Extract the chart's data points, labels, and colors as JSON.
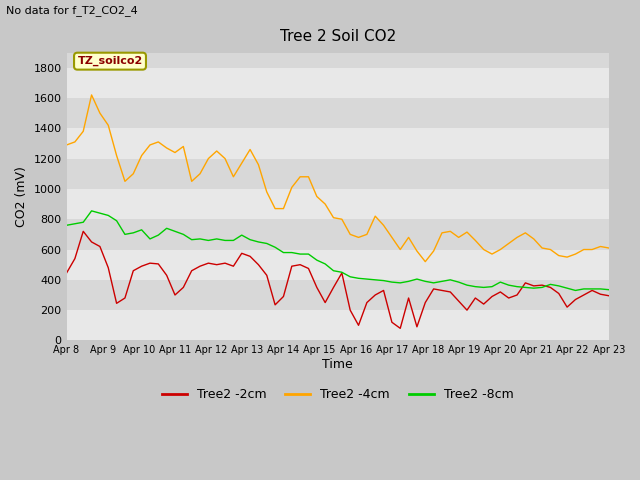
{
  "title": "Tree 2 Soil CO2",
  "subtitle": "No data for f_T2_CO2_4",
  "ylabel": "CO2 (mV)",
  "xlabel": "Time",
  "annotation": "TZ_soilco2",
  "ylim": [
    0,
    1900
  ],
  "yticks": [
    0,
    200,
    400,
    600,
    800,
    1000,
    1200,
    1400,
    1600,
    1800
  ],
  "xtick_labels": [
    "Apr 8",
    "Apr 9",
    "Apr 10",
    "Apr 11",
    "Apr 12",
    "Apr 13",
    "Apr 14",
    "Apr 15",
    "Apr 16",
    "Apr 17",
    "Apr 18",
    "Apr 19",
    "Apr 20",
    "Apr 21",
    "Apr 22",
    "Apr 23"
  ],
  "fig_bg_color": "#c8c8c8",
  "plot_bg_color": "#d8d8d8",
  "band_color": "#e8e8e8",
  "line_colors": {
    "2cm": "#cc0000",
    "4cm": "#ffa500",
    "8cm": "#00cc00"
  },
  "legend_labels": [
    "Tree2 -2cm",
    "Tree2 -4cm",
    "Tree2 -8cm"
  ],
  "series_2cm": [
    445,
    540,
    720,
    650,
    620,
    480,
    245,
    280,
    460,
    490,
    510,
    505,
    430,
    300,
    350,
    460,
    490,
    510,
    500,
    510,
    490,
    575,
    555,
    500,
    430,
    235,
    290,
    490,
    500,
    475,
    350,
    250,
    350,
    445,
    200,
    100,
    250,
    300,
    330,
    120,
    80,
    280,
    90,
    250,
    340,
    330,
    320,
    260,
    200,
    280,
    240,
    290,
    320,
    280,
    300,
    380,
    360,
    365,
    350,
    310,
    220,
    270,
    300,
    330,
    305,
    295
  ],
  "series_4cm": [
    1290,
    1310,
    1380,
    1620,
    1500,
    1420,
    1220,
    1050,
    1100,
    1220,
    1290,
    1310,
    1270,
    1240,
    1280,
    1050,
    1100,
    1200,
    1250,
    1200,
    1080,
    1170,
    1260,
    1160,
    980,
    870,
    870,
    1010,
    1080,
    1080,
    950,
    900,
    810,
    800,
    700,
    680,
    700,
    820,
    760,
    680,
    600,
    680,
    590,
    520,
    590,
    710,
    720,
    680,
    715,
    660,
    600,
    570,
    600,
    640,
    680,
    710,
    670,
    610,
    600,
    560,
    550,
    570,
    600,
    600,
    620,
    610
  ],
  "series_8cm": [
    760,
    770,
    780,
    855,
    840,
    825,
    790,
    700,
    710,
    730,
    670,
    695,
    740,
    720,
    700,
    665,
    670,
    660,
    670,
    660,
    660,
    695,
    665,
    650,
    640,
    615,
    580,
    580,
    570,
    570,
    530,
    505,
    460,
    450,
    420,
    410,
    405,
    400,
    395,
    385,
    380,
    390,
    405,
    390,
    380,
    390,
    400,
    385,
    365,
    355,
    350,
    355,
    385,
    365,
    355,
    350,
    345,
    350,
    370,
    360,
    345,
    330,
    340,
    340,
    340,
    335
  ]
}
